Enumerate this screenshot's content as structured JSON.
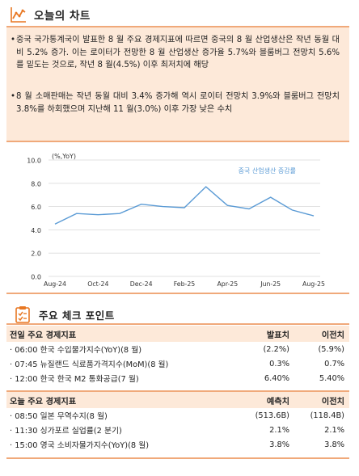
{
  "header": {
    "title": "오늘의 차트"
  },
  "summary": [
    "중국 국가통계국이 발표한 8 월 주요 경제지표에 따르면 중국의 8 월 산업생산은 작년 동월 대비 5.2% 증가. 이는 로이터가 전망한 8 월 산업생산 증가율 5.7%와 블룸버그 전망치 5.6%를 밑도는 것으로, 작년 8 월(4.5%) 이후 최저치에 해당",
    "8 월 소매판매는 작년 동월 대비 3.4% 증가해 역시 로이터 전망치 3.9%와 블룸버그 전망치 3.8%를 하회했으며 지난해 11 월(3.0%) 이후 가장 낮은 수치"
  ],
  "chart_data": {
    "type": "line",
    "title": "",
    "unit_label": "(%,YoY)",
    "xlabel": "",
    "ylabel": "",
    "series": [
      {
        "name": "중국 산업생산 증감률",
        "x": [
          "Aug-24",
          "Sep-24",
          "Oct-24",
          "Nov-24",
          "Dec-24",
          "Jan-25",
          "Feb-25",
          "Mar-25",
          "Apr-25",
          "May-25",
          "Jun-25",
          "Jul-25",
          "Aug-25"
        ],
        "values": [
          4.5,
          5.4,
          5.3,
          5.4,
          6.2,
          6.0,
          5.9,
          7.7,
          6.1,
          5.8,
          6.8,
          5.7,
          5.2
        ]
      }
    ],
    "x_tick_labels": [
      "Aug-24",
      "Oct-24",
      "Dec-24",
      "Feb-25",
      "Apr-25",
      "Jun-25",
      "Aug-25"
    ],
    "y_ticks": [
      "0.0",
      "2.0",
      "4.0",
      "6.0",
      "8.0",
      "10.0"
    ],
    "ylim": [
      0,
      10
    ],
    "grid": "horizontal",
    "legend": "top-right",
    "line_color": "#5b9bd5",
    "legend_color": "#5b9bd5"
  },
  "check": {
    "title": "주요 체크 포인트",
    "prev": {
      "headers": [
        "전일 주요 경제지표",
        "발표치",
        "이전치"
      ],
      "rows": [
        [
          "· 06:00 한국 수입물가지수(YoY)(8 월)",
          "(2.2%)",
          "(5.9%)"
        ],
        [
          "· 07:45 뉴질랜드 식료품가격지수(MoM)(8 월)",
          "0.3%",
          "0.7%"
        ],
        [
          "· 12:00 한국 한국 M2 통화공급(7 월)",
          "6.40%",
          "5.40%"
        ]
      ]
    },
    "today": {
      "headers": [
        "오늘 주요 경제지표",
        "예측치",
        "이전치"
      ],
      "rows": [
        [
          "· 08:50 일본 무역수지(8 월)",
          "(513.6B)",
          "(118.4B)"
        ],
        [
          "· 11:30 싱가포르 실업률(2 분기)",
          "2.1%",
          "2.1%"
        ],
        [
          "· 15:00 영국 소비자물가지수(YoY)(8 월)",
          "3.8%",
          "3.8%"
        ]
      ]
    }
  },
  "colors": {
    "accent": "#e87722",
    "panel_bg": "#fde9d9",
    "rule": "#f0a97a"
  },
  "icons": {
    "header": "line-chart-icon",
    "check": "checklist-icon"
  }
}
